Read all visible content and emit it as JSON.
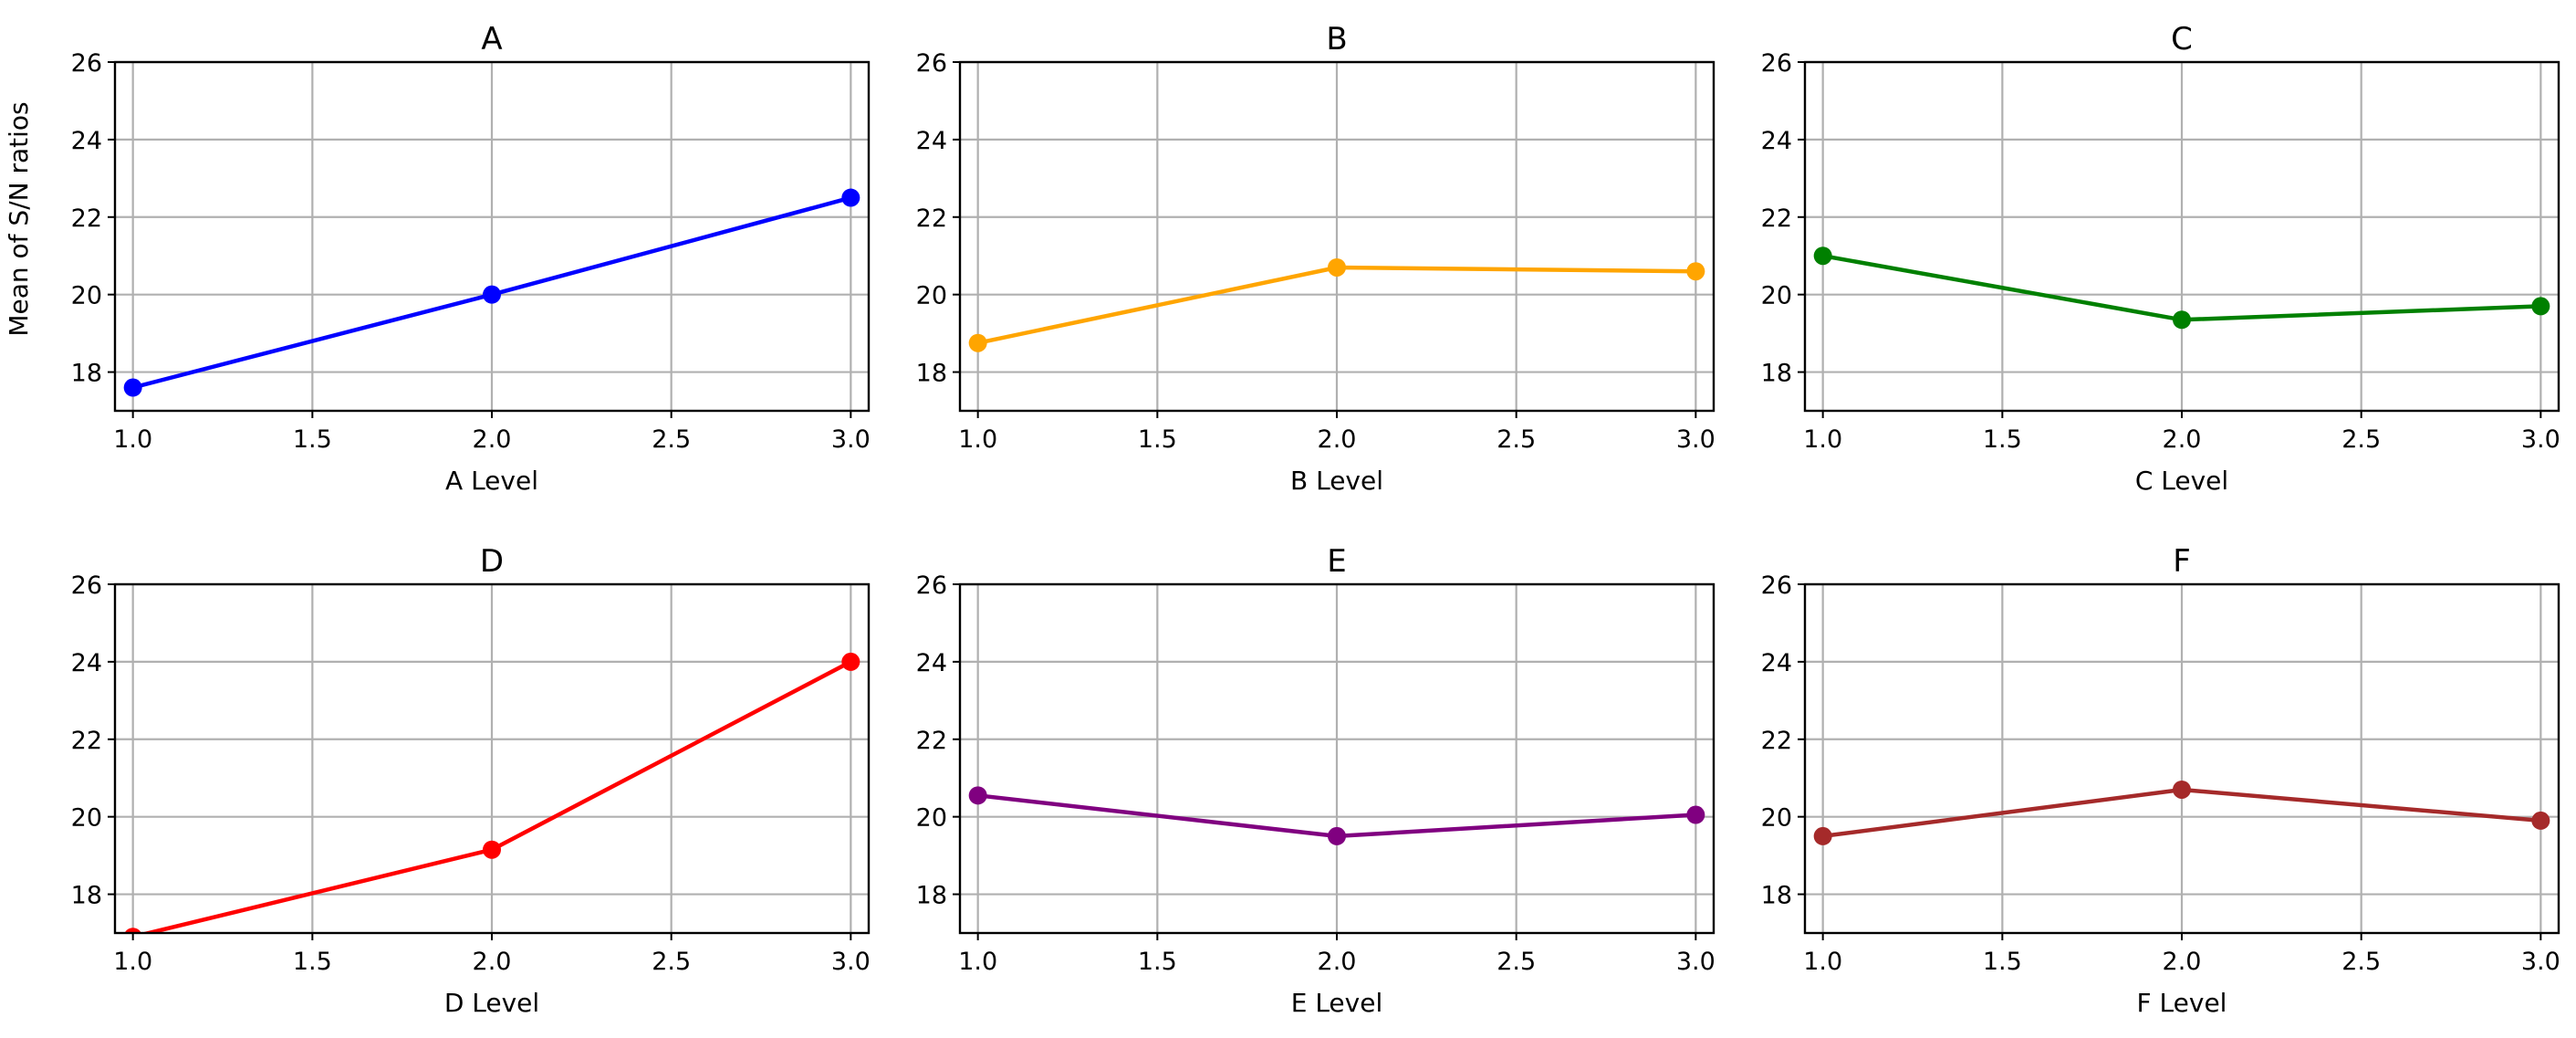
{
  "chart_data": {
    "type": "line",
    "layout": "2x3 grid of panels",
    "shared_ylabel": "Mean of S/N ratios",
    "xlim": [
      0.95,
      3.05
    ],
    "ylim": [
      17,
      26
    ],
    "xticks": [
      1.0,
      1.5,
      2.0,
      2.5,
      3.0
    ],
    "xtick_labels": [
      "1.0",
      "1.5",
      "2.0",
      "2.5",
      "3.0"
    ],
    "yticks": [
      18,
      20,
      22,
      24,
      26
    ],
    "ytick_labels": [
      "18",
      "20",
      "22",
      "24",
      "26"
    ],
    "grid": true,
    "panels": [
      {
        "title": "A",
        "xlabel": "A Level",
        "color": "#0000ff",
        "x": [
          1.0,
          2.0,
          3.0
        ],
        "y": [
          17.6,
          20.0,
          22.5
        ]
      },
      {
        "title": "B",
        "xlabel": "B Level",
        "color": "#ffa500",
        "x": [
          1.0,
          2.0,
          3.0
        ],
        "y": [
          18.75,
          20.7,
          20.6
        ]
      },
      {
        "title": "C",
        "xlabel": "C Level",
        "color": "#008000",
        "x": [
          1.0,
          2.0,
          3.0
        ],
        "y": [
          21.0,
          19.35,
          19.7
        ]
      },
      {
        "title": "D",
        "xlabel": "D Level",
        "color": "#ff0000",
        "x": [
          1.0,
          2.0,
          3.0
        ],
        "y": [
          16.9,
          19.15,
          24.0
        ]
      },
      {
        "title": "E",
        "xlabel": "E Level",
        "color": "#800080",
        "x": [
          1.0,
          2.0,
          3.0
        ],
        "y": [
          20.55,
          19.5,
          20.05
        ]
      },
      {
        "title": "F",
        "xlabel": "F Level",
        "color": "#a52a2a",
        "x": [
          1.0,
          2.0,
          3.0
        ],
        "y": [
          19.5,
          20.7,
          19.9
        ]
      }
    ]
  }
}
